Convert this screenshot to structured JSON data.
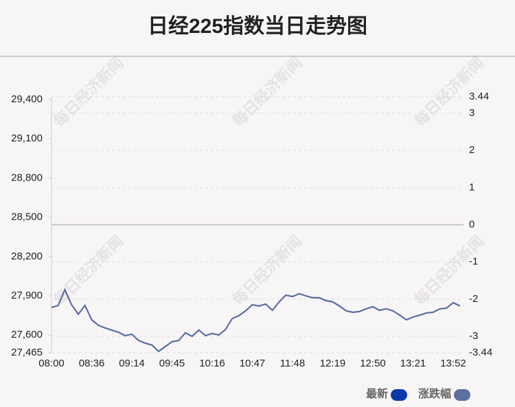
{
  "chart_data": {
    "type": "line",
    "title": "日经225指数当日走势图",
    "watermark": "每日经济新闻",
    "categories": [
      "08:00",
      null,
      null,
      null,
      null,
      null,
      "08:36",
      null,
      null,
      null,
      null,
      null,
      "09:14",
      null,
      null,
      null,
      null,
      null,
      "09:45",
      null,
      null,
      null,
      null,
      null,
      "10:16",
      null,
      null,
      null,
      null,
      null,
      "10:47",
      null,
      null,
      null,
      null,
      null,
      "11:48",
      null,
      null,
      null,
      null,
      null,
      "12:19",
      null,
      null,
      null,
      null,
      null,
      "12:50",
      null,
      null,
      null,
      null,
      null,
      "13:21",
      null,
      null,
      null,
      null,
      null,
      "13:52",
      null
    ],
    "series": [
      {
        "name": "最新",
        "color": "#0b3aa8",
        "line_color": "#4a5f9a",
        "values": [
          27811,
          27827,
          27947,
          27832,
          27759,
          27827,
          27717,
          27675,
          27654,
          27638,
          27622,
          27596,
          27607,
          27559,
          27538,
          27523,
          27475,
          27512,
          27549,
          27559,
          27617,
          27591,
          27638,
          27596,
          27612,
          27601,
          27643,
          27727,
          27748,
          27785,
          27832,
          27822,
          27837,
          27790,
          27853,
          27905,
          27895,
          27916,
          27900,
          27885,
          27885,
          27864,
          27853,
          27822,
          27785,
          27774,
          27780,
          27801,
          27816,
          27790,
          27801,
          27785,
          27753,
          27717,
          27738,
          27753,
          27769,
          27774,
          27801,
          27806,
          27848,
          27822
        ]
      },
      {
        "name": "涨跌幅",
        "color": "#5a6fa0",
        "axis": "y2",
        "values": [
          -2.22,
          -2.17,
          -1.74,
          -2.15,
          -2.4,
          -2.17,
          -2.55,
          -2.7,
          -2.77,
          -2.83,
          -2.89,
          -2.98,
          -2.94,
          -3.11,
          -3.18,
          -3.23,
          -3.4,
          -3.27,
          -3.14,
          -3.11,
          -2.9,
          -3.0,
          -2.83,
          -2.98,
          -2.92,
          -2.96,
          -2.81,
          -2.52,
          -2.44,
          -2.31,
          -2.15,
          -2.18,
          -2.13,
          -2.3,
          -2.07,
          -1.89,
          -1.93,
          -1.85,
          -1.91,
          -1.96,
          -1.96,
          -2.04,
          -2.07,
          -2.18,
          -2.31,
          -2.35,
          -2.33,
          -2.26,
          -2.2,
          -2.3,
          -2.26,
          -2.31,
          -2.43,
          -2.55,
          -2.48,
          -2.43,
          -2.37,
          -2.35,
          -2.26,
          -2.24,
          -2.09,
          -2.18
        ]
      }
    ],
    "ylim": [
      27465,
      29421
    ],
    "yticks": [
      {
        "value": 27465,
        "label": "27,465"
      },
      {
        "value": 27600,
        "label": "27,600"
      },
      {
        "value": 27900,
        "label": "27,900"
      },
      {
        "value": 28200,
        "label": "28,200"
      },
      {
        "value": 28500,
        "label": "28,500"
      },
      {
        "value": 28800,
        "label": "28,800"
      },
      {
        "value": 29100,
        "label": "29,100"
      },
      {
        "value": 29400,
        "label": "29,400"
      }
    ],
    "y2lim": [
      -3.44,
      3.44
    ],
    "y2ticks": [
      -3.44,
      -3,
      -2,
      -1,
      0,
      1,
      2,
      3,
      3.44
    ],
    "grid": true
  }
}
